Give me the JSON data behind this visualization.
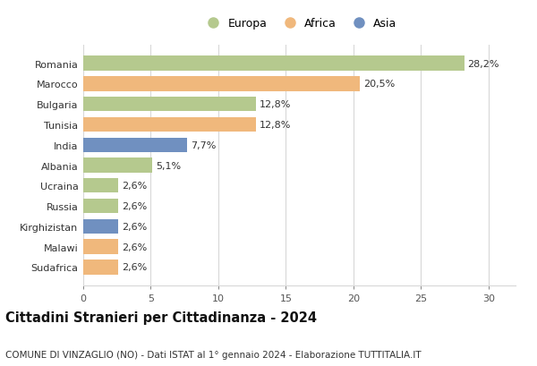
{
  "countries": [
    "Romania",
    "Marocco",
    "Bulgaria",
    "Tunisia",
    "India",
    "Albania",
    "Ucraina",
    "Russia",
    "Kirghizistan",
    "Malawi",
    "Sudafrica"
  ],
  "values": [
    28.2,
    20.5,
    12.8,
    12.8,
    7.7,
    5.1,
    2.6,
    2.6,
    2.6,
    2.6,
    2.6
  ],
  "labels": [
    "28,2%",
    "20,5%",
    "12,8%",
    "12,8%",
    "7,7%",
    "5,1%",
    "2,6%",
    "2,6%",
    "2,6%",
    "2,6%",
    "2,6%"
  ],
  "continents": [
    "Europa",
    "Africa",
    "Europa",
    "Africa",
    "Asia",
    "Europa",
    "Europa",
    "Europa",
    "Asia",
    "Africa",
    "Africa"
  ],
  "colors": {
    "Europa": "#b5c98e",
    "Africa": "#f0b87c",
    "Asia": "#7090c0"
  },
  "xlim": [
    0,
    32
  ],
  "xticks": [
    0,
    5,
    10,
    15,
    20,
    25,
    30
  ],
  "title": "Cittadini Stranieri per Cittadinanza - 2024",
  "subtitle": "COMUNE DI VINZAGLIO (NO) - Dati ISTAT al 1° gennaio 2024 - Elaborazione TUTTITALIA.IT",
  "background_color": "#ffffff",
  "grid_color": "#d8d8d8",
  "bar_height": 0.72,
  "title_fontsize": 10.5,
  "subtitle_fontsize": 7.5,
  "label_fontsize": 8,
  "tick_fontsize": 8,
  "legend_fontsize": 9
}
